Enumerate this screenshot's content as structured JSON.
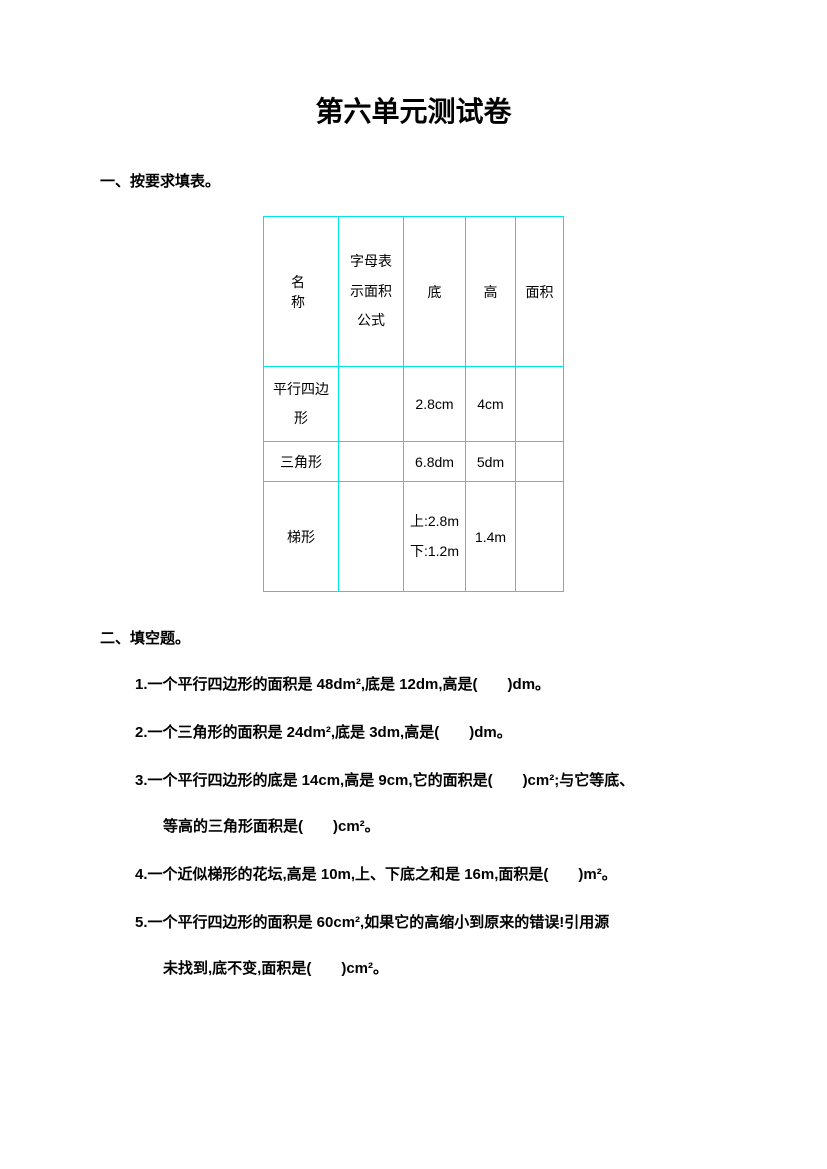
{
  "title": "第六单元测试卷",
  "section1": {
    "heading": "一、按要求填表。",
    "table": {
      "border_color": "#00e5e5",
      "headers": {
        "name": "名　称",
        "formula": "字母表示面积公式",
        "base": "底",
        "height": "高",
        "area": "面积"
      },
      "rows": [
        {
          "name": "平行四边形",
          "formula": "",
          "base": "2.8cm",
          "height": "4cm",
          "area": ""
        },
        {
          "name": "三角形",
          "formula": "",
          "base": "6.8dm",
          "height": "5dm",
          "area": ""
        },
        {
          "name": "梯形",
          "formula": "",
          "base": "上:2.8m下:1.2m",
          "height": "1.4m",
          "area": ""
        }
      ]
    }
  },
  "section2": {
    "heading": "二、填空题。",
    "questions": {
      "q1": "1.一个平行四边形的面积是 48dm²,底是 12dm,高是(　　)dm。",
      "q2": "2.一个三角形的面积是 24dm²,底是 3dm,高是(　　)dm。",
      "q3_line1": "3.一个平行四边形的底是 14cm,高是 9cm,它的面积是(　　)cm²;与它等底、",
      "q3_line2": "等高的三角形面积是(　　)cm²。",
      "q4": "4.一个近似梯形的花坛,高是 10m,上、下底之和是 16m,面积是(　　)m²。",
      "q5_line1": "5.一个平行四边形的面积是 60cm²,如果它的高缩小到原来的错误!引用源",
      "q5_line2": "未找到,底不变,面积是(　　)cm²。"
    }
  }
}
